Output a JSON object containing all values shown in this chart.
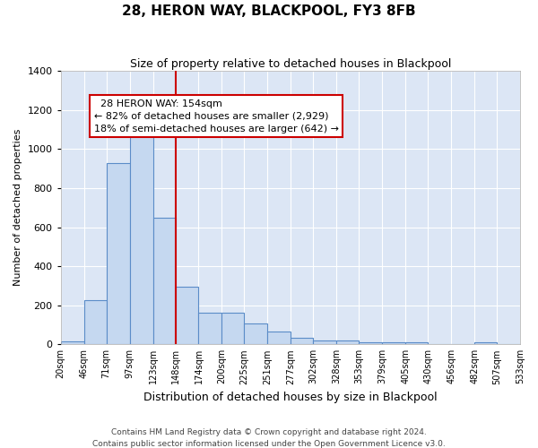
{
  "title": "28, HERON WAY, BLACKPOOL, FY3 8FB",
  "subtitle": "Size of property relative to detached houses in Blackpool",
  "xlabel": "Distribution of detached houses by size in Blackpool",
  "ylabel": "Number of detached properties",
  "footer_line1": "Contains HM Land Registry data © Crown copyright and database right 2024.",
  "footer_line2": "Contains public sector information licensed under the Open Government Licence v3.0.",
  "property_label": "28 HERON WAY: 154sqm",
  "annotation_line1": "← 82% of detached houses are smaller (2,929)",
  "annotation_line2": "18% of semi-detached houses are larger (642) →",
  "bar_left_edges": [
    20,
    46,
    71,
    97,
    123,
    148,
    174,
    200,
    225,
    251,
    277,
    302,
    328,
    353,
    379,
    405,
    430,
    456,
    482,
    507
  ],
  "bar_widths": [
    26,
    25,
    26,
    26,
    25,
    26,
    26,
    25,
    26,
    26,
    25,
    26,
    25,
    26,
    26,
    25,
    26,
    26,
    25,
    26
  ],
  "bar_heights": [
    15,
    225,
    930,
    1075,
    650,
    295,
    160,
    160,
    105,
    65,
    35,
    20,
    20,
    10,
    10,
    10,
    0,
    0,
    10,
    0
  ],
  "bar_color": "#c5d8f0",
  "bar_edge_color": "#5b8cc8",
  "vline_x": 148,
  "vline_color": "#cc0000",
  "ylim": [
    0,
    1400
  ],
  "yticks": [
    0,
    200,
    400,
    600,
    800,
    1000,
    1200,
    1400
  ],
  "xlim_left": 20,
  "xlim_right": 533,
  "bg_color": "#dce6f5",
  "fig_bg_color": "#ffffff",
  "grid_color": "#ffffff",
  "annotation_box_edge_color": "#cc0000",
  "annotation_box_face_color": "#ffffff",
  "xtick_labels": [
    "20sqm",
    "46sqm",
    "71sqm",
    "97sqm",
    "123sqm",
    "148sqm",
    "174sqm",
    "200sqm",
    "225sqm",
    "251sqm",
    "277sqm",
    "302sqm",
    "328sqm",
    "353sqm",
    "379sqm",
    "405sqm",
    "430sqm",
    "456sqm",
    "482sqm",
    "507sqm",
    "533sqm"
  ]
}
